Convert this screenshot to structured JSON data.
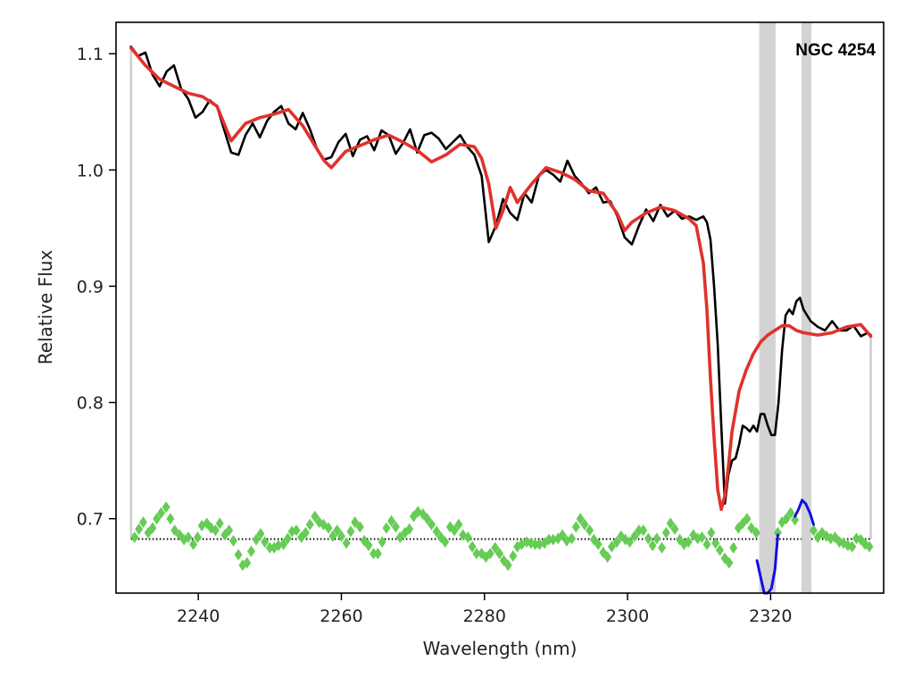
{
  "chart_data": {
    "type": "line",
    "xlabel": "Wavelength (nm)",
    "ylabel": "Relative Flux",
    "annotation": "NGC 4254",
    "xlim": [
      2228.5,
      2335.8
    ],
    "ylim": [
      0.636,
      1.127
    ],
    "x_ticks": [
      2240,
      2260,
      2280,
      2300,
      2320
    ],
    "x_tick_labels": [
      "2240",
      "2260",
      "2280",
      "2300",
      "2320"
    ],
    "y_ticks": [
      0.7,
      0.8,
      0.9,
      1.0,
      1.1
    ],
    "y_tick_labels": [
      "0.7",
      "0.8",
      "0.9",
      "1.0",
      "1.1"
    ],
    "fit_range": [
      2230.6,
      2334.0
    ],
    "masked_regions": [
      [
        2318.4,
        2320.7
      ],
      [
        2324.3,
        2325.7
      ]
    ],
    "residual_baseline": 0.6825,
    "colors": {
      "observed": "#000000",
      "model": "#e0322b",
      "residuals_good": "#66cc55",
      "residuals_masked": "#1010e0",
      "masked_band": "#d3d3d3",
      "range_marker": "#cccccc"
    },
    "series": [
      {
        "key": "observed",
        "x": [
          2230.6,
          2231.6,
          2232.6,
          2233.6,
          2234.6,
          2235.6,
          2236.6,
          2237.6,
          2238.6,
          2239.6,
          2240.6,
          2241.6,
          2242.6,
          2243.6,
          2244.6,
          2245.6,
          2246.6,
          2247.6,
          2248.6,
          2249.6,
          2250.6,
          2251.6,
          2252.6,
          2253.6,
          2254.6,
          2255.6,
          2256.6,
          2257.6,
          2258.6,
          2259.6,
          2260.6,
          2261.6,
          2262.6,
          2263.6,
          2264.6,
          2265.6,
          2266.6,
          2267.6,
          2268.6,
          2269.6,
          2270.6,
          2271.6,
          2272.6,
          2273.6,
          2274.6,
          2275.6,
          2276.6,
          2277.6,
          2278.6,
          2279.6,
          2280.6,
          2281.6,
          2282.6,
          2283.6,
          2284.6,
          2285.6,
          2286.6,
          2287.6,
          2288.6,
          2289.6,
          2290.6,
          2291.6,
          2292.6,
          2293.6,
          2294.6,
          2295.6,
          2296.6,
          2297.6,
          2298.6,
          2299.6,
          2300.6,
          2301.6,
          2302.6,
          2303.6,
          2304.6,
          2305.6,
          2306.6,
          2307.6,
          2308.6,
          2309.6,
          2310.6,
          2311.1,
          2311.6,
          2312.1,
          2312.6,
          2313.1,
          2313.6,
          2314.1,
          2314.6,
          2315.1,
          2315.6,
          2316.1,
          2316.6,
          2317.1,
          2317.6,
          2318.1,
          2318.6,
          2319.1,
          2319.6,
          2320.1,
          2320.6,
          2321.1,
          2321.6,
          2322.1,
          2322.6,
          2323.1,
          2323.6,
          2324.1,
          2324.6,
          2325.1,
          2325.6,
          2326.6,
          2327.6,
          2328.6,
          2329.6,
          2330.6,
          2331.6,
          2332.6,
          2333.6,
          2334.0
        ],
        "y": [
          1.106,
          1.098,
          1.101,
          1.082,
          1.072,
          1.085,
          1.09,
          1.07,
          1.061,
          1.045,
          1.05,
          1.06,
          1.055,
          1.035,
          1.015,
          1.013,
          1.03,
          1.04,
          1.028,
          1.042,
          1.05,
          1.055,
          1.04,
          1.035,
          1.049,
          1.035,
          1.018,
          1.009,
          1.011,
          1.024,
          1.031,
          1.012,
          1.026,
          1.029,
          1.017,
          1.034,
          1.03,
          1.014,
          1.023,
          1.035,
          1.015,
          1.03,
          1.032,
          1.027,
          1.018,
          1.024,
          1.03,
          1.02,
          1.013,
          0.995,
          0.938,
          0.952,
          0.975,
          0.963,
          0.957,
          0.98,
          0.972,
          0.995,
          1.0,
          0.996,
          0.99,
          1.008,
          0.995,
          0.988,
          0.98,
          0.985,
          0.972,
          0.973,
          0.96,
          0.942,
          0.936,
          0.952,
          0.966,
          0.956,
          0.97,
          0.96,
          0.965,
          0.958,
          0.96,
          0.957,
          0.96,
          0.955,
          0.94,
          0.9,
          0.85,
          0.78,
          0.713,
          0.738,
          0.75,
          0.752,
          0.764,
          0.78,
          0.778,
          0.775,
          0.78,
          0.775,
          0.79,
          0.79,
          0.78,
          0.772,
          0.772,
          0.8,
          0.845,
          0.875,
          0.88,
          0.876,
          0.887,
          0.89,
          0.88,
          0.875,
          0.87,
          0.865,
          0.862,
          0.87,
          0.862,
          0.862,
          0.866,
          0.857,
          0.86,
          0.858
        ]
      },
      {
        "key": "model",
        "x": [
          2230.6,
          2232.6,
          2234.6,
          2236.6,
          2238.6,
          2240.6,
          2242.6,
          2244.6,
          2246.6,
          2248.6,
          2250.6,
          2252.6,
          2254.6,
          2256.6,
          2257.6,
          2258.6,
          2260.6,
          2262.6,
          2264.6,
          2266.6,
          2268.6,
          2270.6,
          2272.6,
          2274.6,
          2276.6,
          2278.6,
          2279.6,
          2280.6,
          2281.6,
          2282.6,
          2283.6,
          2284.6,
          2286.6,
          2288.6,
          2290.6,
          2292.6,
          2294.6,
          2296.6,
          2298.6,
          2299.6,
          2300.6,
          2302.6,
          2304.6,
          2306.6,
          2308.6,
          2309.6,
          2310.6,
          2311.1,
          2311.6,
          2312.1,
          2312.6,
          2313.1,
          2313.6,
          2314.1,
          2314.6,
          2315.6,
          2316.6,
          2317.6,
          2318.6,
          2319.6,
          2320.6,
          2321.6,
          2322.6,
          2323.6,
          2324.6,
          2326.6,
          2328.6,
          2330.6,
          2332.6,
          2334.0
        ],
        "y": [
          1.105,
          1.09,
          1.078,
          1.072,
          1.066,
          1.063,
          1.055,
          1.025,
          1.04,
          1.045,
          1.048,
          1.052,
          1.038,
          1.018,
          1.008,
          1.002,
          1.016,
          1.021,
          1.026,
          1.03,
          1.024,
          1.017,
          1.007,
          1.013,
          1.022,
          1.02,
          1.01,
          0.988,
          0.95,
          0.965,
          0.985,
          0.972,
          0.988,
          1.002,
          0.998,
          0.992,
          0.982,
          0.98,
          0.962,
          0.948,
          0.955,
          0.963,
          0.968,
          0.965,
          0.958,
          0.952,
          0.92,
          0.88,
          0.82,
          0.77,
          0.725,
          0.708,
          0.72,
          0.745,
          0.775,
          0.81,
          0.828,
          0.842,
          0.852,
          0.858,
          0.862,
          0.866,
          0.866,
          0.862,
          0.86,
          0.858,
          0.86,
          0.865,
          0.867,
          0.857
        ]
      },
      {
        "key": "residuals_good",
        "x": [
          2231.1,
          2231.7,
          2232.3,
          2233.0,
          2233.6,
          2234.2,
          2234.8,
          2235.5,
          2236.1,
          2236.7,
          2237.4,
          2238.0,
          2238.6,
          2239.3,
          2239.9,
          2240.5,
          2241.2,
          2241.8,
          2242.4,
          2243.0,
          2243.7,
          2244.3,
          2244.9,
          2245.6,
          2246.2,
          2246.8,
          2247.4,
          2248.1,
          2248.7,
          2249.3,
          2250.0,
          2250.6,
          2251.2,
          2251.9,
          2252.5,
          2253.1,
          2253.7,
          2254.4,
          2255.0,
          2255.6,
          2256.3,
          2256.9,
          2257.5,
          2258.2,
          2258.8,
          2259.4,
          2260.0,
          2260.7,
          2261.3,
          2261.9,
          2262.6,
          2263.2,
          2263.8,
          2264.5,
          2265.1,
          2265.7,
          2266.3,
          2267.0,
          2267.6,
          2268.2,
          2268.9,
          2269.5,
          2270.1,
          2270.7,
          2271.4,
          2272.0,
          2272.6,
          2273.3,
          2273.9,
          2274.5,
          2275.2,
          2275.8,
          2276.4,
          2277.0,
          2277.7,
          2278.3,
          2278.9,
          2279.6,
          2280.2,
          2280.8,
          2281.5,
          2282.1,
          2282.7,
          2283.3,
          2284.0,
          2284.6,
          2285.2,
          2285.9,
          2286.5,
          2287.1,
          2287.7,
          2288.4,
          2289.0,
          2289.6,
          2290.3,
          2290.9,
          2291.5,
          2292.2,
          2292.8,
          2293.4,
          2294.0,
          2294.7,
          2295.3,
          2295.9,
          2296.6,
          2297.2,
          2297.8,
          2298.5,
          2299.1,
          2299.7,
          2300.3,
          2301.0,
          2301.6,
          2302.2,
          2302.9,
          2303.5,
          2304.1,
          2304.8,
          2305.4,
          2306.0,
          2306.6,
          2307.3,
          2307.9,
          2308.5,
          2309.2,
          2309.8,
          2310.4,
          2311.1,
          2311.7,
          2312.3,
          2312.9,
          2313.6,
          2314.2,
          2314.8,
          2315.5,
          2316.1,
          2316.7,
          2317.3,
          2318.0,
          2321.0,
          2321.6,
          2322.2,
          2322.8,
          2323.4,
          2326.0,
          2326.6,
          2327.2,
          2327.8,
          2328.4,
          2329.0,
          2329.6,
          2330.2,
          2330.8,
          2331.4,
          2332.0,
          2332.6,
          2333.2,
          2333.8
        ],
        "y": [
          0.684,
          0.691,
          0.697,
          0.688,
          0.692,
          0.7,
          0.705,
          0.71,
          0.7,
          0.69,
          0.686,
          0.682,
          0.684,
          0.678,
          0.684,
          0.694,
          0.696,
          0.692,
          0.69,
          0.696,
          0.686,
          0.69,
          0.681,
          0.669,
          0.66,
          0.662,
          0.672,
          0.682,
          0.687,
          0.68,
          0.675,
          0.675,
          0.677,
          0.678,
          0.683,
          0.689,
          0.69,
          0.684,
          0.688,
          0.695,
          0.702,
          0.697,
          0.695,
          0.692,
          0.685,
          0.69,
          0.685,
          0.679,
          0.689,
          0.697,
          0.693,
          0.681,
          0.677,
          0.67,
          0.67,
          0.68,
          0.692,
          0.698,
          0.693,
          0.684,
          0.688,
          0.691,
          0.702,
          0.706,
          0.704,
          0.7,
          0.695,
          0.689,
          0.684,
          0.68,
          0.693,
          0.69,
          0.695,
          0.686,
          0.684,
          0.676,
          0.67,
          0.67,
          0.667,
          0.67,
          0.675,
          0.67,
          0.664,
          0.66,
          0.668,
          0.676,
          0.678,
          0.68,
          0.679,
          0.678,
          0.678,
          0.679,
          0.682,
          0.682,
          0.683,
          0.686,
          0.681,
          0.683,
          0.693,
          0.7,
          0.695,
          0.69,
          0.682,
          0.678,
          0.671,
          0.667,
          0.676,
          0.68,
          0.685,
          0.682,
          0.68,
          0.685,
          0.69,
          0.69,
          0.683,
          0.677,
          0.683,
          0.675,
          0.688,
          0.696,
          0.691,
          0.682,
          0.678,
          0.68,
          0.686,
          0.683,
          0.684,
          0.678,
          0.688,
          0.679,
          0.673,
          0.666,
          0.662,
          0.675,
          0.692,
          0.696,
          0.7,
          0.692,
          0.688,
          0.688,
          0.697,
          0.7,
          0.705,
          0.699,
          0.69,
          0.684,
          0.688,
          0.685,
          0.683,
          0.684,
          0.68,
          0.679,
          0.677,
          0.676,
          0.683,
          0.682,
          0.678,
          0.676
        ]
      },
      {
        "key": "residuals_masked",
        "x": [
          2318.1,
          2318.6,
          2319.1,
          2319.6,
          2320.1,
          2320.6,
          2321.0
        ],
        "y": [
          0.664,
          0.65,
          0.636,
          0.633,
          0.64,
          0.656,
          0.686
        ]
      },
      {
        "key": "residuals_masked_2",
        "x": [
          2323.4,
          2323.9,
          2324.4,
          2324.9,
          2325.5,
          2326.0
        ],
        "y": [
          0.702,
          0.708,
          0.716,
          0.713,
          0.705,
          0.695
        ]
      }
    ]
  }
}
